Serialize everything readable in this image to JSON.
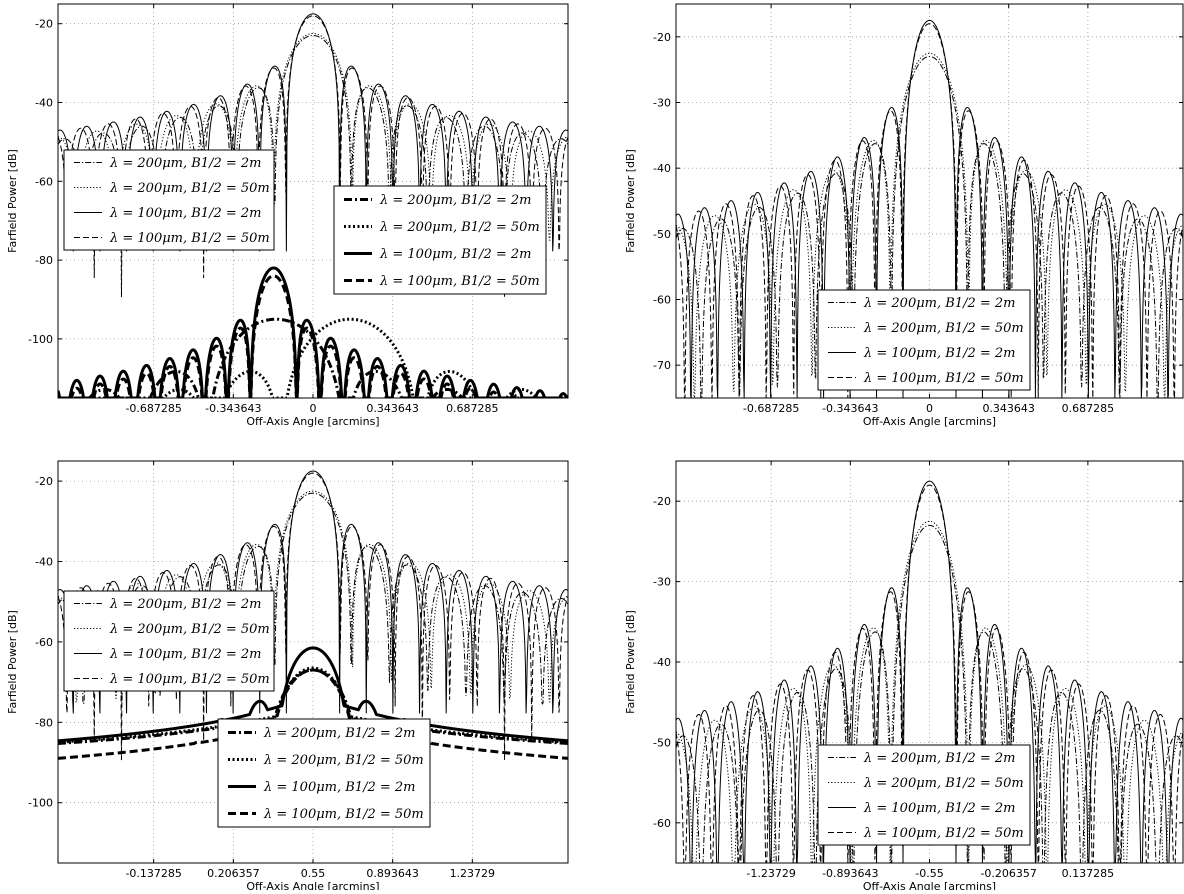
{
  "chart_data": [
    {
      "type": "line",
      "xlabel": "Off-Axis Angle [arcmins]",
      "ylabel": "Farfield Power [dB]",
      "xlim": [
        -1.1,
        1.1
      ],
      "ylim": [
        -115,
        -15
      ],
      "x_ticks": [
        -0.687285,
        -0.343643,
        0,
        0.343643,
        0.687285
      ],
      "x_tick_labels": [
        "-0.687285",
        "-0.343643",
        "0",
        "0.343643",
        "0.687285"
      ],
      "y_ticks": [
        -20,
        -40,
        -60,
        -80,
        -100
      ],
      "y_tick_labels": [
        "-20",
        "-40",
        "-60",
        "-80",
        "-100"
      ],
      "grid": true,
      "legends": [
        {
          "position": "left-middle",
          "entries": [
            {
              "label": "λ = 200μm, B1/2 = 2m",
              "style": "dashdot"
            },
            {
              "label": "λ = 200μm, B1/2 = 50m",
              "style": "dotted"
            },
            {
              "label": "λ = 100μm, B1/2 = 2m",
              "style": "solid"
            },
            {
              "label": "λ = 100μm, B1/2 = 50m",
              "style": "dashed"
            }
          ]
        },
        {
          "position": "right-middle",
          "entries": [
            {
              "label": "λ = 200μm, B1/2 = 2m",
              "style": "dashdot-thick"
            },
            {
              "label": "λ = 200μm, B1/2 = 50m",
              "style": "dotted-thick"
            },
            {
              "label": "λ = 100μm, B1/2 = 2m",
              "style": "solid-thick"
            },
            {
              "label": "λ = 100μm, B1/2 = 50m",
              "style": "dashed-thick"
            }
          ]
        }
      ],
      "series": [
        {
          "style": "solid",
          "curve": {
            "center": 0,
            "peak": -17.5,
            "width": 0.115,
            "sidelobe_decay": 9,
            "null_depth": 55,
            "floor": -115
          }
        },
        {
          "style": "dashed",
          "curve": {
            "center": 0,
            "peak": -18,
            "width": 0.118,
            "sidelobe_decay": 9,
            "null_depth": 55,
            "floor": -115
          }
        },
        {
          "style": "dotted",
          "curve": {
            "center": 0,
            "peak": -22.5,
            "width": 0.17,
            "sidelobe_decay": 6,
            "null_depth": 40,
            "floor": -115
          }
        },
        {
          "style": "dashdot",
          "curve": {
            "center": 0,
            "peak": -23,
            "width": 0.165,
            "sidelobe_decay": 6,
            "null_depth": 40,
            "floor": -115
          }
        },
        {
          "style": "solid-thick",
          "curve": {
            "center": -0.17,
            "peak": -82,
            "width": 0.1,
            "sidelobe_decay": 8,
            "null_depth": 35,
            "floor": -115
          }
        },
        {
          "style": "dashed-thick",
          "curve": {
            "center": -0.17,
            "peak": -84,
            "width": 0.1,
            "sidelobe_decay": 8,
            "null_depth": 35,
            "floor": -115
          }
        },
        {
          "style": "dotted-thick",
          "curve": {
            "center": 0.16,
            "peak": -95,
            "width": 0.3,
            "sidelobe_decay": 6,
            "null_depth": 20,
            "floor": -115
          }
        },
        {
          "style": "dashdot-thick",
          "curve": {
            "center": -0.16,
            "peak": -95,
            "width": 0.3,
            "sidelobe_decay": 6,
            "null_depth": 20,
            "floor": -115
          }
        }
      ]
    },
    {
      "type": "line",
      "xlabel": "Off-Axis Angle [arcmins]",
      "ylabel": "Farfield Power [dB]",
      "xlim": [
        -1.1,
        1.1
      ],
      "ylim": [
        -75,
        -15
      ],
      "x_ticks": [
        -0.687285,
        -0.343643,
        0,
        0.343643,
        0.687285
      ],
      "x_tick_labels": [
        "-0.687285",
        "-0.343643",
        "0",
        "0.343643",
        "0.687285"
      ],
      "y_ticks": [
        -20,
        -30,
        -40,
        -50,
        -60,
        -70
      ],
      "y_tick_labels": [
        "-20",
        "-30",
        "-40",
        "-50",
        "-60",
        "-70"
      ],
      "grid": true,
      "legends": [
        {
          "position": "lower-center",
          "entries": [
            {
              "label": "λ = 200μm, B1/2 = 2m",
              "style": "dashdot"
            },
            {
              "label": "λ = 200μm, B1/2 = 50m",
              "style": "dotted"
            },
            {
              "label": "λ = 100μm, B1/2 = 2m",
              "style": "solid"
            },
            {
              "label": "λ = 100μm, B1/2 = 50m",
              "style": "dashed"
            }
          ]
        }
      ],
      "series": [
        {
          "style": "solid",
          "curve": {
            "center": 0,
            "peak": -17.5,
            "width": 0.115,
            "sidelobe_decay": 9,
            "null_depth": 55,
            "floor": -75
          }
        },
        {
          "style": "dashed",
          "curve": {
            "center": 0,
            "peak": -18,
            "width": 0.118,
            "sidelobe_decay": 9,
            "null_depth": 55,
            "floor": -75
          }
        },
        {
          "style": "dotted",
          "curve": {
            "center": 0,
            "peak": -22.5,
            "width": 0.17,
            "sidelobe_decay": 6,
            "null_depth": 40,
            "floor": -75
          }
        },
        {
          "style": "dashdot",
          "curve": {
            "center": 0,
            "peak": -23,
            "width": 0.165,
            "sidelobe_decay": 6,
            "null_depth": 40,
            "floor": -75
          }
        }
      ]
    },
    {
      "type": "line",
      "xlabel": "Off-Axis Angle [arcmins]",
      "ylabel": "Farfield Power [dB]",
      "xlim": [
        -0.55,
        1.65
      ],
      "ylim": [
        -115,
        -15
      ],
      "x_ticks": [
        -0.137285,
        0.206357,
        0.55,
        0.893643,
        1.23729
      ],
      "x_tick_labels": [
        "-0.137285",
        "0.206357",
        "0.55",
        "0.893643",
        "1.23729"
      ],
      "y_ticks": [
        -20,
        -40,
        -60,
        -80,
        -100
      ],
      "y_tick_labels": [
        "-20",
        "-40",
        "-60",
        "-80",
        "-100"
      ],
      "grid": true,
      "legends": [
        {
          "position": "left-middle",
          "entries": [
            {
              "label": "λ = 200μm, B1/2 = 2m",
              "style": "dashdot"
            },
            {
              "label": "λ = 200μm, B1/2 = 50m",
              "style": "dotted"
            },
            {
              "label": "λ = 100μm, B1/2 = 2m",
              "style": "solid"
            },
            {
              "label": "λ = 100μm, B1/2 = 50m",
              "style": "dashed"
            }
          ]
        },
        {
          "position": "lower-center",
          "entries": [
            {
              "label": "λ = 200μm, B1/2 = 2m",
              "style": "dashdot-thick"
            },
            {
              "label": "λ = 200μm, B1/2 = 50m",
              "style": "dotted-thick"
            },
            {
              "label": "λ = 100μm, B1/2 = 2m",
              "style": "solid-thick"
            },
            {
              "label": "λ = 100μm, B1/2 = 50m",
              "style": "dashed-thick"
            }
          ]
        }
      ],
      "series": [
        {
          "style": "solid",
          "curve": {
            "center": 0.55,
            "peak": -17.5,
            "width": 0.115,
            "sidelobe_decay": 9,
            "null_depth": 55,
            "floor": -115
          }
        },
        {
          "style": "dashed",
          "curve": {
            "center": 0.55,
            "peak": -18,
            "width": 0.118,
            "sidelobe_decay": 9,
            "null_depth": 55,
            "floor": -115
          }
        },
        {
          "style": "dotted",
          "curve": {
            "center": 0.55,
            "peak": -22.5,
            "width": 0.17,
            "sidelobe_decay": 6,
            "null_depth": 40,
            "floor": -115
          }
        },
        {
          "style": "dashdot",
          "curve": {
            "center": 0.55,
            "peak": -23,
            "width": 0.165,
            "sidelobe_decay": 6,
            "null_depth": 40,
            "floor": -115
          }
        },
        {
          "style": "solid-thick",
          "curve": {
            "center": 0.55,
            "peak": -61.5,
            "width": 0.16,
            "sidelobe_decay": 6,
            "null_depth": 10,
            "floor": -115
          }
        },
        {
          "style": "dashed-thick",
          "curve": {
            "center": 0.55,
            "peak": -67,
            "width": 0.2,
            "sidelobe_decay": 6,
            "null_depth": 10,
            "floor": -115
          }
        },
        {
          "style": "dotted-thick",
          "curve": {
            "center": 0.55,
            "peak": -66.5,
            "width": 0.2,
            "sidelobe_decay": 5,
            "null_depth": 8,
            "floor": -115
          }
        },
        {
          "style": "dashdot-thick",
          "curve": {
            "center": 0.55,
            "peak": -67,
            "width": 0.21,
            "sidelobe_decay": 5,
            "null_depth": 8,
            "floor": -115
          }
        }
      ]
    },
    {
      "type": "line",
      "xlabel": "Off-Axis Angle [arcmins]",
      "ylabel": "Farfield Power [dB]",
      "xlim": [
        -1.65,
        0.55
      ],
      "ylim": [
        -65,
        -15
      ],
      "x_ticks": [
        -1.23729,
        -0.893643,
        -0.55,
        -0.206357,
        0.137285
      ],
      "x_tick_labels": [
        "-1.23729",
        "-0.893643",
        "-0.55",
        "-0.206357",
        "0.137285"
      ],
      "y_ticks": [
        -20,
        -30,
        -40,
        -50,
        -60
      ],
      "y_tick_labels": [
        "-20",
        "-30",
        "-40",
        "-50",
        "-60"
      ],
      "grid": true,
      "legends": [
        {
          "position": "lower-center",
          "entries": [
            {
              "label": "λ = 200μm, B1/2 = 2m",
              "style": "dashdot"
            },
            {
              "label": "λ = 200μm, B1/2 = 50m",
              "style": "dotted"
            },
            {
              "label": "λ = 100μm, B1/2 = 2m",
              "style": "solid"
            },
            {
              "label": "λ = 100μm, B1/2 = 50m",
              "style": "dashed"
            }
          ]
        }
      ],
      "series": [
        {
          "style": "solid",
          "curve": {
            "center": -0.55,
            "peak": -17.5,
            "width": 0.115,
            "sidelobe_decay": 9,
            "null_depth": 55,
            "floor": -65
          }
        },
        {
          "style": "dashed",
          "curve": {
            "center": -0.55,
            "peak": -18,
            "width": 0.118,
            "sidelobe_decay": 9,
            "null_depth": 55,
            "floor": -65
          }
        },
        {
          "style": "dotted",
          "curve": {
            "center": -0.55,
            "peak": -22.5,
            "width": 0.17,
            "sidelobe_decay": 6,
            "null_depth": 40,
            "floor": -65
          }
        },
        {
          "style": "dashdot",
          "curve": {
            "center": -0.55,
            "peak": -23,
            "width": 0.165,
            "sidelobe_decay": 6,
            "null_depth": 40,
            "floor": -65
          }
        }
      ]
    }
  ]
}
